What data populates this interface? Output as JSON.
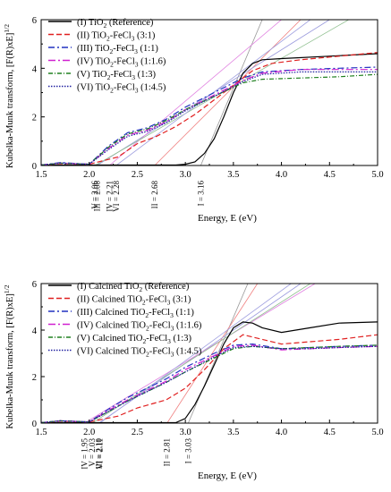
{
  "chart_data": [
    {
      "type": "line",
      "xlabel": "Energy, E (eV)",
      "ylabel_main": "Kubelka-Munk transform, [F(R)xE]",
      "ylabel_sup": "1/2",
      "xlim": [
        1.5,
        5.0
      ],
      "ylim": [
        0,
        6
      ],
      "xticks": [
        "1.5",
        "2.0",
        "2.5",
        "3.0",
        "3.5",
        "4.0",
        "4.5",
        "5.0"
      ],
      "yticks": [
        "0",
        "2",
        "4",
        "6"
      ],
      "grid": false,
      "legend_position": "top-left",
      "series": [
        {
          "name": "(I) TiO2 (Reference)",
          "color": "#000000",
          "dash": "solid",
          "x": [
            1.5,
            2.9,
            3.0,
            3.1,
            3.2,
            3.3,
            3.4,
            3.5,
            3.6,
            3.7,
            3.8,
            4.0,
            4.5,
            5.0
          ],
          "y": [
            0.02,
            0.02,
            0.05,
            0.15,
            0.5,
            1.1,
            2.0,
            3.0,
            3.8,
            4.2,
            4.35,
            4.4,
            4.5,
            4.6
          ]
        },
        {
          "name": "(II) TiO2-FeCl3 (3:1)",
          "color": "#e02020",
          "dash": "6,3",
          "x": [
            1.5,
            1.7,
            2.0,
            2.3,
            2.5,
            2.7,
            2.9,
            3.1,
            3.3,
            3.5,
            3.7,
            3.9,
            4.2,
            4.6,
            5.0
          ],
          "y": [
            0.02,
            0.08,
            0.05,
            0.35,
            0.9,
            1.2,
            1.6,
            2.1,
            2.7,
            3.3,
            3.9,
            4.2,
            4.35,
            4.5,
            4.65
          ]
        },
        {
          "name": "(III) TiO2-FeCl3 (1:1)",
          "color": "#2030c0",
          "dash": "7,3,2,3",
          "x": [
            1.5,
            1.7,
            2.0,
            2.2,
            2.4,
            2.6,
            2.8,
            3.0,
            3.3,
            3.6,
            3.8,
            4.2,
            4.6,
            5.0
          ],
          "y": [
            0.02,
            0.12,
            0.05,
            0.8,
            1.35,
            1.55,
            1.9,
            2.4,
            3.0,
            3.6,
            3.85,
            3.95,
            4.0,
            4.05
          ]
        },
        {
          "name": "(IV) TiO2-FeCl3 (1:1.6)",
          "color": "#d020d0",
          "dash": "8,3,2,3",
          "x": [
            1.5,
            1.7,
            2.0,
            2.2,
            2.4,
            2.6,
            2.8,
            3.0,
            3.3,
            3.6,
            3.8,
            4.2,
            4.6,
            5.0
          ],
          "y": [
            0.02,
            0.1,
            0.05,
            0.7,
            1.25,
            1.45,
            1.8,
            2.3,
            2.9,
            3.5,
            3.8,
            3.95,
            3.95,
            3.95
          ]
        },
        {
          "name": "(V) TiO2-FeCl3 (1:3)",
          "color": "#208020",
          "dash": "5,2,1,2",
          "x": [
            1.5,
            1.7,
            2.0,
            2.2,
            2.4,
            2.6,
            2.8,
            3.0,
            3.3,
            3.6,
            3.8,
            4.2,
            4.6,
            5.0
          ],
          "y": [
            0.02,
            0.1,
            0.05,
            0.75,
            1.3,
            1.5,
            1.85,
            2.3,
            2.85,
            3.4,
            3.55,
            3.6,
            3.65,
            3.75
          ]
        },
        {
          "name": "(VI) TiO2-FeCl3 (1:4.5)",
          "color": "#2020a0",
          "dash": "1.5,1.5",
          "x": [
            1.5,
            1.7,
            2.0,
            2.2,
            2.4,
            2.6,
            2.8,
            3.0,
            3.3,
            3.6,
            3.8,
            4.2,
            4.6,
            5.0
          ],
          "y": [
            0.02,
            0.1,
            0.05,
            0.65,
            1.2,
            1.4,
            1.75,
            2.25,
            2.85,
            3.45,
            3.75,
            3.85,
            3.85,
            3.85
          ]
        }
      ],
      "tangent_lines": [
        {
          "color": "#999999",
          "x": [
            3.16,
            3.8
          ],
          "y": [
            0,
            6
          ]
        },
        {
          "color": "#f08080",
          "x": [
            2.68,
            4.2
          ],
          "y": [
            0,
            6
          ]
        },
        {
          "color": "#9999dd",
          "x": [
            2.08,
            4.5
          ],
          "y": [
            0,
            6
          ]
        },
        {
          "color": "#e080e0",
          "x": [
            2.21,
            4.0
          ],
          "y": [
            0,
            6
          ]
        },
        {
          "color": "#90c090",
          "x": [
            2.06,
            4.7
          ],
          "y": [
            0,
            6
          ]
        },
        {
          "color": "#a0a0e0",
          "x": [
            2.28,
            4.3
          ],
          "y": [
            0,
            6
          ]
        }
      ],
      "annotations": [
        {
          "text": "V = 2.06",
          "x": 2.06
        },
        {
          "text": "III = 2.08",
          "x": 2.08
        },
        {
          "text": "IV = 2.21",
          "x": 2.21
        },
        {
          "text": "VI = 2.28",
          "x": 2.28
        },
        {
          "text": "II = 2.68",
          "x": 2.68
        },
        {
          "text": "I = 3.16",
          "x": 3.16
        }
      ]
    },
    {
      "type": "line",
      "xlabel": "Energy, E (eV)",
      "ylabel_main": "Kubelka-Munk transform, [F(R)xE]",
      "ylabel_sup": "1/2",
      "xlim": [
        1.5,
        5.0
      ],
      "ylim": [
        0,
        6
      ],
      "xticks": [
        "1.5",
        "2.0",
        "2.5",
        "3.0",
        "3.5",
        "4.0",
        "4.5",
        "5.0"
      ],
      "yticks": [
        "0",
        "2",
        "4",
        "6"
      ],
      "grid": false,
      "legend_position": "top-left",
      "series": [
        {
          "name": "(I) Calcined TiO2 (Reference)",
          "color": "#000000",
          "dash": "solid",
          "x": [
            1.5,
            2.9,
            3.0,
            3.1,
            3.2,
            3.3,
            3.4,
            3.5,
            3.6,
            3.7,
            3.8,
            4.0,
            4.3,
            4.6,
            5.0
          ],
          "y": [
            0.02,
            0.02,
            0.2,
            0.8,
            1.6,
            2.5,
            3.4,
            4.1,
            4.35,
            4.3,
            4.1,
            3.9,
            4.1,
            4.3,
            4.35
          ]
        },
        {
          "name": "(II) Calcined TiO2-FeCl3 (3:1)",
          "color": "#e02020",
          "dash": "6,3",
          "x": [
            1.5,
            1.7,
            2.0,
            2.3,
            2.5,
            2.8,
            3.0,
            3.2,
            3.4,
            3.6,
            3.8,
            4.0,
            4.3,
            4.6,
            5.0
          ],
          "y": [
            0.02,
            0.08,
            0.05,
            0.3,
            0.65,
            1.0,
            1.5,
            2.3,
            3.2,
            3.8,
            3.6,
            3.4,
            3.5,
            3.6,
            3.8
          ]
        },
        {
          "name": "(III) Calcined TiO2-FeCl3 (1:1)",
          "color": "#2030c0",
          "dash": "7,3,2,3",
          "x": [
            1.5,
            1.7,
            2.0,
            2.2,
            2.4,
            2.6,
            2.8,
            3.0,
            3.3,
            3.5,
            3.7,
            4.0,
            4.3,
            4.6,
            5.0
          ],
          "y": [
            0.02,
            0.1,
            0.05,
            0.6,
            1.1,
            1.5,
            1.9,
            2.4,
            3.0,
            3.35,
            3.4,
            3.2,
            3.25,
            3.3,
            3.35
          ]
        },
        {
          "name": "(IV) Calcined TiO2-FeCl3 (1:1.6)",
          "color": "#d020d0",
          "dash": "8,3,2,3",
          "x": [
            1.5,
            1.7,
            2.0,
            2.2,
            2.4,
            2.6,
            2.8,
            3.0,
            3.3,
            3.5,
            3.7,
            4.0,
            4.3,
            4.6,
            5.0
          ],
          "y": [
            0.02,
            0.1,
            0.05,
            0.55,
            1.0,
            1.4,
            1.8,
            2.3,
            2.9,
            3.3,
            3.35,
            3.15,
            3.2,
            3.25,
            3.3
          ]
        },
        {
          "name": "(V) Calcined TiO2-FeCl3 (1:3)",
          "color": "#208020",
          "dash": "5,2,1,2",
          "x": [
            1.5,
            1.7,
            2.0,
            2.2,
            2.4,
            2.6,
            2.8,
            3.0,
            3.3,
            3.5,
            3.7,
            4.0,
            4.3,
            4.6,
            5.0
          ],
          "y": [
            0.02,
            0.1,
            0.05,
            0.5,
            0.95,
            1.35,
            1.75,
            2.2,
            2.8,
            3.2,
            3.3,
            3.2,
            3.25,
            3.3,
            3.35
          ]
        },
        {
          "name": "(VI) Calcined TiO2-FeCl3 (1:4.5)",
          "color": "#2020a0",
          "dash": "1.5,1.5",
          "x": [
            1.5,
            1.7,
            2.0,
            2.2,
            2.4,
            2.6,
            2.8,
            3.0,
            3.3,
            3.5,
            3.7,
            4.0,
            4.3,
            4.6,
            5.0
          ],
          "y": [
            0.02,
            0.1,
            0.05,
            0.5,
            0.95,
            1.35,
            1.75,
            2.2,
            2.85,
            3.25,
            3.3,
            3.2,
            3.2,
            3.25,
            3.3
          ]
        }
      ],
      "tangent_lines": [
        {
          "color": "#999999",
          "x": [
            3.03,
            3.65
          ],
          "y": [
            0,
            6
          ]
        },
        {
          "color": "#f08080",
          "x": [
            2.81,
            3.75
          ],
          "y": [
            0,
            6
          ]
        },
        {
          "color": "#9999dd",
          "x": [
            2.1,
            4.2
          ],
          "y": [
            0,
            6
          ]
        },
        {
          "color": "#e080e0",
          "x": [
            1.95,
            4.35
          ],
          "y": [
            0,
            6
          ]
        },
        {
          "color": "#90c090",
          "x": [
            2.03,
            4.3
          ],
          "y": [
            0,
            6
          ]
        },
        {
          "color": "#a0a0e0",
          "x": [
            2.11,
            4.1
          ],
          "y": [
            0,
            6
          ]
        }
      ],
      "annotations": [
        {
          "text": "IV = 1.95",
          "x": 1.95
        },
        {
          "text": "V = 2.03",
          "x": 2.03
        },
        {
          "text": "III = 2.10",
          "x": 2.1
        },
        {
          "text": "VI = 2.11",
          "x": 2.11
        },
        {
          "text": "II = 2.81",
          "x": 2.81
        },
        {
          "text": "I = 3.03",
          "x": 3.03
        }
      ]
    }
  ]
}
